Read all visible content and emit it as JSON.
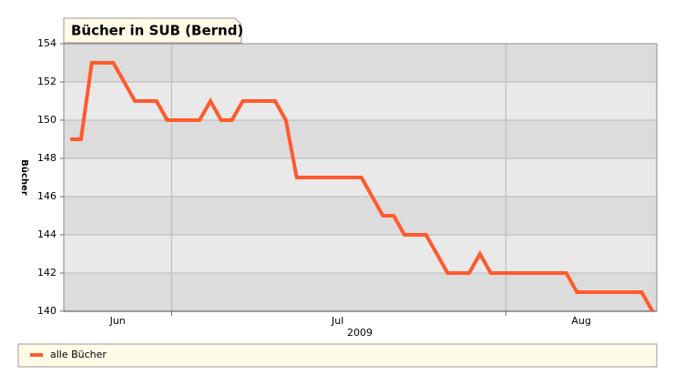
{
  "chart_data": {
    "type": "line",
    "title": "Bücher in SUB (Bernd)",
    "ylabel": "Bücher",
    "xlabel": "2009",
    "x": [
      0,
      1,
      2,
      4,
      6,
      8,
      9,
      12,
      13,
      14,
      15,
      16,
      19,
      20,
      21,
      27,
      29,
      30,
      31,
      33,
      35,
      37,
      38,
      39,
      46,
      47,
      53,
      54
    ],
    "series": [
      {
        "name": "alle Bücher",
        "color": "#ff5a2d",
        "values": [
          149,
          149,
          153,
          153,
          151,
          151,
          150,
          150,
          151,
          150,
          150,
          151,
          151,
          150,
          147,
          147,
          145,
          145,
          144,
          144,
          142,
          142,
          143,
          142,
          142,
          141,
          141,
          140
        ]
      }
    ],
    "xlim": [
      -0.6,
      54.4
    ],
    "xticks": [
      9.4,
      40.4
    ],
    "month_labels": [
      {
        "value": 4.4,
        "label": "Jun"
      },
      {
        "value": 24.8,
        "label": "Jul"
      },
      {
        "value": 47.4,
        "label": "Aug"
      }
    ],
    "ylim": [
      140,
      154
    ],
    "yticks": [
      140,
      142,
      144,
      146,
      148,
      150,
      152,
      154
    ],
    "grid": true,
    "legend": "bottom"
  }
}
